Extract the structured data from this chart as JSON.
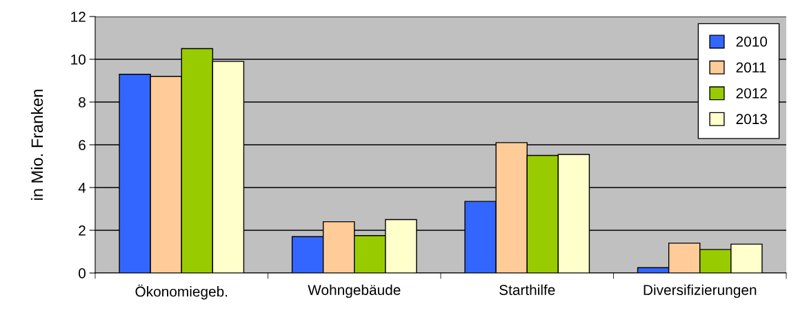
{
  "chart_data": {
    "type": "bar",
    "ylabel": "in Mio. Franken",
    "categories": [
      "Ökonomiegeb.",
      "Wohngebäude",
      "Starthilfe",
      "Diversifizierungen"
    ],
    "series": [
      {
        "name": "2010",
        "color": "#3366ff",
        "values": [
          9.3,
          1.7,
          3.35,
          0.25
        ]
      },
      {
        "name": "2011",
        "color": "#ffcc99",
        "values": [
          9.2,
          2.4,
          6.1,
          1.4
        ]
      },
      {
        "name": "2012",
        "color": "#99cc00",
        "values": [
          10.5,
          1.75,
          5.5,
          1.1
        ]
      },
      {
        "name": "2013",
        "color": "#ffffcc",
        "values": [
          9.9,
          2.5,
          5.55,
          1.35
        ]
      }
    ],
    "ylim": [
      0,
      12
    ],
    "yticks": [
      0,
      2,
      4,
      6,
      8,
      10,
      12
    ],
    "grid": "y",
    "legend": "top right"
  }
}
